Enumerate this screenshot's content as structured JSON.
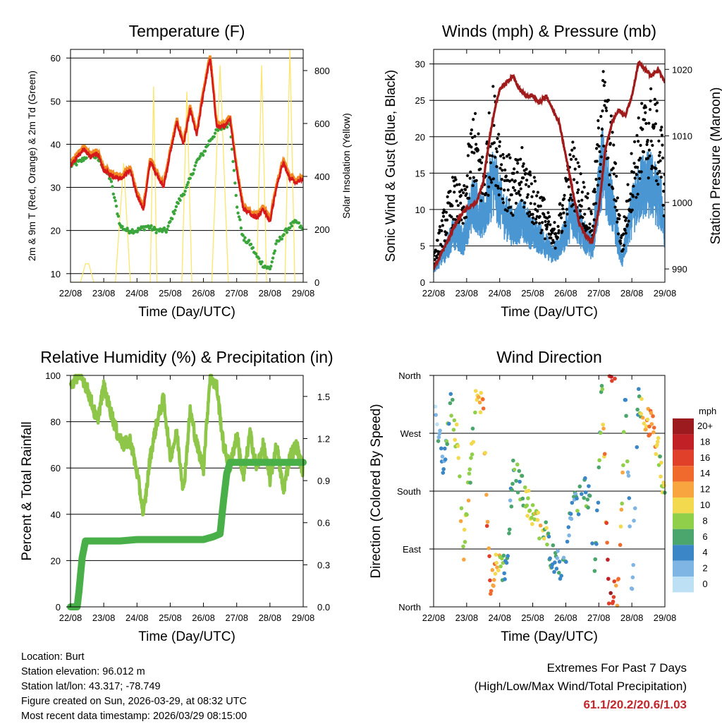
{
  "colors": {
    "temp_2m": "#d7191c",
    "temp_9m": "#f08a24",
    "dewpoint": "#3aa53a",
    "solar": "#fbe56a",
    "wind": "#4a96d2",
    "gust": "#000000",
    "pressure": "#a01c1c",
    "rh": "#8ec64a",
    "precip": "#49b049"
  },
  "days": [
    "22/08",
    "23/08",
    "24/08",
    "25/08",
    "26/08",
    "27/08",
    "28/08",
    "29/08"
  ],
  "x_axis_label": "Time (Day/UTC)",
  "chart_data": [
    {
      "type": "line",
      "title": "Temperature (F)",
      "xlabel": "Time (Day/UTC)",
      "ylabel": "2m & 9m T (Red, Orange) & 2m Td (Green)",
      "y2label": "Solar Insolation (Yellow)",
      "ylim": [
        8,
        62
      ],
      "y2lim": [
        0,
        880
      ],
      "yticks": [
        10,
        20,
        30,
        40,
        50,
        60
      ],
      "y2ticks": [
        0,
        200,
        400,
        600,
        800
      ],
      "x_range_days": [
        0,
        7
      ],
      "series": [
        {
          "name": "2m T",
          "x": [
            0,
            0.2,
            0.4,
            0.6,
            0.8,
            1.0,
            1.2,
            1.5,
            1.8,
            2.0,
            2.2,
            2.4,
            2.6,
            2.8,
            3.0,
            3.2,
            3.4,
            3.6,
            3.8,
            4.0,
            4.2,
            4.4,
            4.6,
            4.8,
            5.0,
            5.2,
            5.4,
            5.6,
            5.8,
            6.0,
            6.2,
            6.4,
            6.6,
            6.8,
            7.0
          ],
          "values": [
            35,
            37,
            39,
            37,
            38,
            34,
            33,
            32,
            34,
            28,
            25,
            36,
            33,
            30,
            38,
            45,
            40,
            48,
            42,
            52,
            60,
            44,
            44,
            46,
            34,
            25,
            24,
            23,
            25,
            22,
            30,
            36,
            32,
            31,
            32
          ]
        },
        {
          "name": "Td",
          "x": [
            0,
            0.3,
            0.6,
            0.9,
            1.2,
            1.5,
            1.7,
            2.0,
            2.3,
            2.6,
            2.9,
            3.2,
            3.5,
            3.8,
            4.0,
            4.2,
            4.4,
            4.6,
            4.8,
            5.0,
            5.2,
            5.4,
            5.6,
            5.8,
            6.0,
            6.2,
            6.4,
            6.6,
            6.8,
            7.0
          ],
          "values": [
            35,
            36,
            38,
            36,
            32,
            21,
            20,
            20,
            21,
            20,
            20,
            26,
            30,
            36,
            38,
            41,
            43,
            44,
            45,
            26,
            18,
            17,
            14,
            12,
            11,
            17,
            19,
            21,
            22,
            20
          ]
        },
        {
          "name": "Solar",
          "x": [
            0,
            0.3,
            0.45,
            0.55,
            0.7,
            1.0,
            1.35,
            1.6,
            1.8,
            2.0,
            2.4,
            2.5,
            2.6,
            2.85,
            3.0,
            3.35,
            3.5,
            3.65,
            3.9,
            4.0,
            4.25,
            4.5,
            4.75,
            5.0,
            5.25,
            5.6,
            5.75,
            5.9,
            6.25,
            6.45,
            6.6,
            6.75,
            7.0
          ],
          "values": [
            0,
            0,
            70,
            70,
            0,
            0,
            0,
            450,
            0,
            0,
            0,
            740,
            0,
            0,
            0,
            0,
            720,
            0,
            0,
            0,
            0,
            820,
            0,
            0,
            0,
            0,
            820,
            0,
            0,
            0,
            880,
            0,
            0
          ]
        }
      ]
    },
    {
      "type": "scatter",
      "title": "Winds (mph) & Pressure (mb)",
      "xlabel": "Time (Day/UTC)",
      "ylabel": "Sonic Wind & Gust (Blue, Black)",
      "y2label": "Station Pressure (Maroon)",
      "ylim": [
        0,
        32
      ],
      "y2lim": [
        988,
        1023
      ],
      "yticks": [
        0,
        5,
        10,
        15,
        20,
        25,
        30
      ],
      "y2ticks": [
        990,
        1000,
        1010,
        1020
      ],
      "x_range_days": [
        0,
        7
      ],
      "series": [
        {
          "name": "Gust",
          "x": [
            0,
            0.3,
            0.6,
            0.9,
            1.2,
            1.5,
            1.8,
            2.1,
            2.4,
            2.7,
            3.0,
            3.3,
            3.6,
            3.9,
            4.2,
            4.5,
            4.8,
            5.1,
            5.4,
            5.7,
            6.0,
            6.3,
            6.6,
            6.9,
            7.0
          ],
          "values": [
            3,
            8,
            12,
            10,
            20,
            14,
            22,
            16,
            13,
            15,
            12,
            10,
            6,
            10,
            16,
            12,
            8,
            25,
            18,
            5,
            15,
            20,
            22,
            18,
            12
          ]
        },
        {
          "name": "Wind",
          "x": [
            0,
            0.3,
            0.6,
            0.9,
            1.2,
            1.5,
            1.8,
            2.1,
            2.4,
            2.7,
            3.0,
            3.3,
            3.6,
            3.9,
            4.2,
            4.5,
            4.8,
            5.1,
            5.4,
            5.7,
            6.0,
            6.3,
            6.6,
            6.9,
            7.0
          ],
          "values": [
            2,
            4,
            7,
            6,
            12,
            9,
            15,
            10,
            8,
            9,
            7,
            6,
            4,
            6,
            10,
            7,
            5,
            17,
            11,
            3,
            10,
            14,
            14,
            11,
            7
          ]
        },
        {
          "name": "Pressure",
          "x": [
            0,
            0.2,
            0.5,
            0.8,
            1.0,
            1.3,
            1.5,
            1.7,
            1.9,
            2.0,
            2.2,
            2.4,
            2.6,
            2.8,
            3.0,
            3.2,
            3.4,
            3.6,
            3.8,
            4.0,
            4.2,
            4.4,
            4.6,
            4.8,
            5.0,
            5.2,
            5.4,
            5.6,
            5.8,
            6.0,
            6.2,
            6.4,
            6.6,
            6.8,
            7.0
          ],
          "values": [
            990,
            992,
            995,
            998,
            999,
            1000,
            1003,
            1010,
            1015,
            1017,
            1018,
            1019,
            1017,
            1016,
            1016,
            1015,
            1016,
            1014,
            1012,
            1007,
            1002,
            997,
            995,
            994,
            999,
            1008,
            1012,
            1014,
            1013,
            1016,
            1021,
            1020,
            1019,
            1020,
            1018
          ]
        }
      ]
    },
    {
      "type": "line",
      "title": "Relative Humidity (%) & Precipitation (in)",
      "xlabel": "Time (Day/UTC)",
      "ylabel": "Percent & Total Rainfall",
      "ylim": [
        0,
        100
      ],
      "y2lim": [
        0,
        1.65
      ],
      "yticks": [
        0,
        20,
        40,
        60,
        80,
        100
      ],
      "y2ticks": [
        "0.0",
        "0.3",
        "0.6",
        "0.9",
        "1.2",
        "1.5"
      ],
      "x_range_days": [
        0,
        7
      ],
      "series": [
        {
          "name": "RH",
          "x": [
            0,
            0.2,
            0.4,
            0.6,
            0.8,
            1.0,
            1.2,
            1.4,
            1.6,
            1.8,
            2.0,
            2.2,
            2.4,
            2.6,
            2.8,
            3.0,
            3.2,
            3.4,
            3.6,
            3.8,
            4.0,
            4.2,
            4.4,
            4.6,
            4.8,
            5.0,
            5.2,
            5.4,
            5.6,
            5.8,
            6.0,
            6.2,
            6.4,
            6.6,
            6.8,
            7.0
          ],
          "values": [
            95,
            100,
            98,
            90,
            80,
            95,
            85,
            75,
            70,
            72,
            58,
            40,
            65,
            80,
            90,
            65,
            75,
            50,
            85,
            70,
            60,
            100,
            95,
            70,
            60,
            75,
            55,
            75,
            60,
            70,
            55,
            70,
            50,
            65,
            70,
            58
          ]
        },
        {
          "name": "Precip",
          "x": [
            0,
            0.2,
            0.25,
            0.35,
            0.45,
            1.0,
            1.5,
            2.0,
            2.5,
            3.0,
            3.5,
            4.0,
            4.3,
            4.5,
            4.6,
            4.7,
            4.8,
            5.0,
            6.0,
            7.0
          ],
          "values": [
            0,
            0,
            0.1,
            0.35,
            0.47,
            0.47,
            0.47,
            0.48,
            0.48,
            0.48,
            0.48,
            0.48,
            0.5,
            0.52,
            0.75,
            0.95,
            1.03,
            1.03,
            1.03,
            1.03
          ]
        }
      ]
    },
    {
      "type": "scatter",
      "title": "Wind Direction",
      "xlabel": "Time (Day/UTC)",
      "ylabel": "Direction (Colored By Speed)",
      "yticks": [
        "North",
        "West",
        "South",
        "East",
        "North"
      ],
      "ylim_deg": [
        360,
        0
      ],
      "x_range_days": [
        0,
        7
      ],
      "series": [
        {
          "name": "Direction",
          "x": [
            0.1,
            0.3,
            0.5,
            0.7,
            0.9,
            1.3,
            1.5,
            1.7,
            2.0,
            2.2,
            2.4,
            2.7,
            3.0,
            3.3,
            3.6,
            3.9,
            4.2,
            4.5,
            4.7,
            4.9,
            5.1,
            5.3,
            5.6,
            5.8,
            6.0,
            6.2,
            6.4,
            6.6,
            6.8,
            7.0
          ],
          "values": [
            300,
            200,
            330,
            260,
            90,
            330,
            300,
            40,
            70,
            60,
            210,
            180,
            150,
            120,
            80,
            60,
            150,
            180,
            170,
            60,
            350,
            10,
            20,
            340,
            20,
            330,
            300,
            280,
            240,
            180
          ],
          "speed": [
            3,
            4,
            6,
            8,
            10,
            8,
            12,
            14,
            10,
            4,
            6,
            8,
            10,
            9,
            5,
            4,
            3,
            7,
            5,
            4,
            8,
            18,
            14,
            6,
            3,
            6,
            12,
            14,
            10,
            8
          ]
        }
      ],
      "colorbar": {
        "title": "mph",
        "labels": [
          "20+",
          "18",
          "16",
          "14",
          "12",
          "10",
          "8",
          "6",
          "4",
          "2",
          "0"
        ],
        "colors": [
          "#9b1b1e",
          "#c02026",
          "#e0402a",
          "#f06a2e",
          "#f8a53f",
          "#f2d94e",
          "#8fcf4a",
          "#4aa66c",
          "#3a86c6",
          "#7fb5e4",
          "#bde0f5"
        ]
      }
    }
  ],
  "footer": {
    "location": "Location: Burt",
    "elevation": "Station elevation: 96.012 m",
    "latlon": "Station lat/lon: 43.317; -78.749",
    "created": "Figure created on Sun, 2026-03-29, at 08:32 UTC",
    "recent": "Most recent data timestamp: 2026/03/29 08:15:00"
  },
  "extremes": {
    "title": "Extremes For Past 7 Days",
    "subtitle": "(High/Low/Max Wind/Total Precipitation)",
    "values": "61.1/20.2/20.6/1.03"
  }
}
